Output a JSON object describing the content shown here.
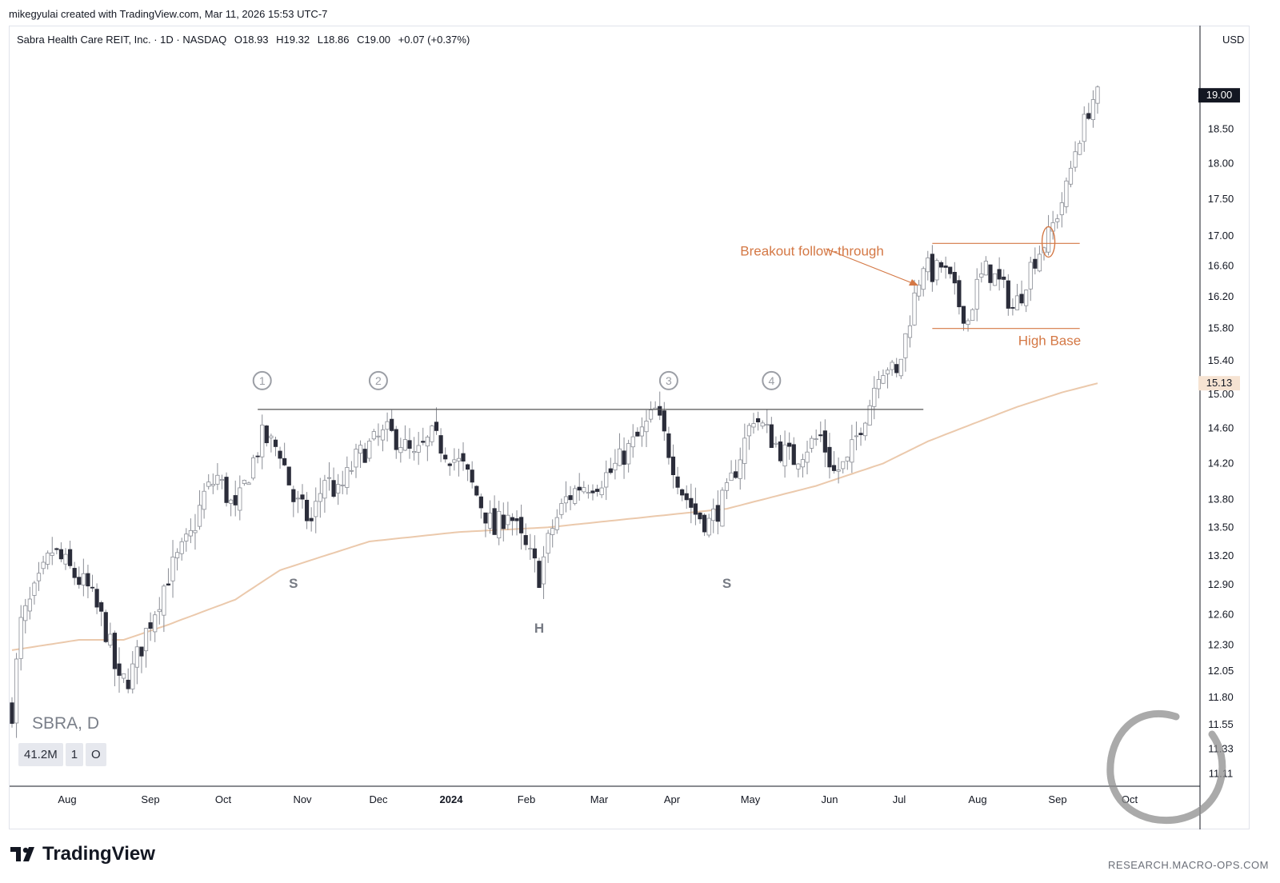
{
  "header": {
    "credit": "mikegyulai created with TradingView.com, Mar 11, 2026 15:53 UTC-7"
  },
  "symbol_bar": {
    "name": "Sabra Health Care REIT, Inc. · 1D · NASDAQ",
    "open": "O18.93",
    "high": "H19.32",
    "low": "L18.86",
    "close": "C19.00",
    "change": "+0.07 (+0.37%)"
  },
  "currency": "USD",
  "watermark": {
    "symbol": "SBRA, D",
    "volume": "41.2M",
    "indicator_count": "1",
    "indicator_o": "O"
  },
  "branding": {
    "logo_text": "TradingView",
    "site": "RESEARCH.MACRO-OPS.COM"
  },
  "colors": {
    "up_body": "#ffffff",
    "down_body": "#2b2d3a",
    "wick": "#8a8d95",
    "ma": "#ebc9ac",
    "annotation": "#d47845",
    "neckline": "#555555",
    "marker": "#9b9ea5"
  },
  "chart_data": {
    "type": "candlestick",
    "ylim": [
      11.0,
      19.7
    ],
    "y_ticks": [
      "11.11",
      "11.33",
      "11.55",
      "11.80",
      "12.05",
      "12.30",
      "12.60",
      "12.90",
      "13.20",
      "13.50",
      "13.80",
      "14.20",
      "14.60",
      "15.00",
      "15.40",
      "15.80",
      "16.20",
      "16.60",
      "17.00",
      "17.50",
      "18.00",
      "18.50"
    ],
    "x_ticks": [
      "Aug",
      "Sep",
      "Oct",
      "Nov",
      "Dec",
      "2024",
      "Feb",
      "Mar",
      "Apr",
      "May",
      "Jun",
      "Jul",
      "Aug",
      "Sep",
      "Oct"
    ],
    "last_price_label": "19.00",
    "last_price": 19.0,
    "ma_price_label": "15.13",
    "ma_price": 15.13,
    "price_path": [
      [
        0,
        11.7
      ],
      [
        2,
        12.5
      ],
      [
        6,
        12.9
      ],
      [
        9,
        13.25
      ],
      [
        13,
        13.05
      ],
      [
        17,
        12.85
      ],
      [
        21,
        12.45
      ],
      [
        24,
        11.9
      ],
      [
        27,
        12.05
      ],
      [
        31,
        12.55
      ],
      [
        35,
        13.0
      ],
      [
        40,
        13.4
      ],
      [
        43,
        13.85
      ],
      [
        46,
        14.05
      ],
      [
        50,
        13.65
      ],
      [
        53,
        14.1
      ],
      [
        56,
        14.5
      ],
      [
        60,
        14.35
      ],
      [
        63,
        13.8
      ],
      [
        67,
        13.55
      ],
      [
        70,
        14.05
      ],
      [
        73,
        13.85
      ],
      [
        77,
        14.25
      ],
      [
        80,
        14.4
      ],
      [
        84,
        14.55
      ],
      [
        87,
        14.45
      ],
      [
        90,
        14.25
      ],
      [
        94,
        14.5
      ],
      [
        97,
        14.35
      ],
      [
        101,
        14.15
      ],
      [
        105,
        13.75
      ],
      [
        108,
        13.45
      ],
      [
        111,
        13.7
      ],
      [
        114,
        13.35
      ],
      [
        118,
        13.0
      ],
      [
        121,
        13.5
      ],
      [
        124,
        13.8
      ],
      [
        127,
        13.95
      ],
      [
        131,
        14.0
      ],
      [
        134,
        14.1
      ],
      [
        137,
        14.3
      ],
      [
        141,
        14.55
      ],
      [
        144,
        14.8
      ],
      [
        147,
        14.35
      ],
      [
        150,
        13.9
      ],
      [
        153,
        13.65
      ],
      [
        156,
        13.55
      ],
      [
        160,
        13.85
      ],
      [
        163,
        14.3
      ],
      [
        166,
        14.75
      ],
      [
        169,
        14.55
      ],
      [
        172,
        14.35
      ],
      [
        175,
        14.25
      ],
      [
        178,
        14.4
      ],
      [
        181,
        14.5
      ],
      [
        184,
        14.1
      ],
      [
        187,
        14.2
      ],
      [
        190,
        14.65
      ],
      [
        192,
        14.9
      ],
      [
        194,
        15.3
      ],
      [
        196,
        15.35
      ],
      [
        198,
        15.2
      ],
      [
        200,
        15.7
      ],
      [
        202,
        16.2
      ],
      [
        204,
        16.65
      ],
      [
        206,
        16.5
      ],
      [
        208,
        16.6
      ],
      [
        210,
        16.4
      ],
      [
        212,
        16.1
      ],
      [
        214,
        15.9
      ],
      [
        216,
        16.35
      ],
      [
        218,
        16.55
      ],
      [
        220,
        16.45
      ],
      [
        222,
        16.3
      ],
      [
        224,
        16.05
      ],
      [
        226,
        16.25
      ],
      [
        228,
        16.6
      ],
      [
        230,
        16.8
      ],
      [
        232,
        17.0
      ],
      [
        234,
        17.3
      ],
      [
        236,
        17.65
      ],
      [
        238,
        18.2
      ],
      [
        240,
        18.6
      ],
      [
        242,
        18.95
      ],
      [
        243,
        19.0
      ]
    ],
    "ma_path": [
      [
        0,
        12.25
      ],
      [
        15,
        12.35
      ],
      [
        25,
        12.35
      ],
      [
        35,
        12.5
      ],
      [
        50,
        12.75
      ],
      [
        60,
        13.05
      ],
      [
        80,
        13.35
      ],
      [
        100,
        13.45
      ],
      [
        120,
        13.5
      ],
      [
        140,
        13.6
      ],
      [
        160,
        13.7
      ],
      [
        180,
        13.95
      ],
      [
        195,
        14.2
      ],
      [
        205,
        14.45
      ],
      [
        215,
        14.65
      ],
      [
        225,
        14.85
      ],
      [
        235,
        15.02
      ],
      [
        243,
        15.13
      ]
    ],
    "neckline": {
      "price": 14.82,
      "from_bar": 55,
      "to_bar": 204
    },
    "touch_points": [
      {
        "label": "1",
        "bar": 56,
        "price": 14.82
      },
      {
        "label": "2",
        "bar": 82,
        "price": 14.82
      },
      {
        "label": "3",
        "bar": 147,
        "price": 14.82
      },
      {
        "label": "4",
        "bar": 170,
        "price": 14.82
      }
    ],
    "pattern_labels": [
      {
        "text": "S",
        "bar": 63,
        "price": 12.95
      },
      {
        "text": "H",
        "bar": 118,
        "price": 12.5
      },
      {
        "text": "S",
        "bar": 160,
        "price": 12.95
      }
    ],
    "high_base": {
      "top": 16.9,
      "bottom": 15.8,
      "from_bar": 206,
      "to_bar": 239
    },
    "annotations": [
      {
        "text": "Breakout follow-through",
        "price": 16.8,
        "bar": 161
      },
      {
        "text": "High Base",
        "price": 15.6,
        "bar": 231
      }
    ],
    "breakout_circle": {
      "bar": 232,
      "price": 16.92
    },
    "title": "Sabra Health Care REIT, Inc. · 1D · NASDAQ",
    "xlabel": "",
    "ylabel": ""
  }
}
